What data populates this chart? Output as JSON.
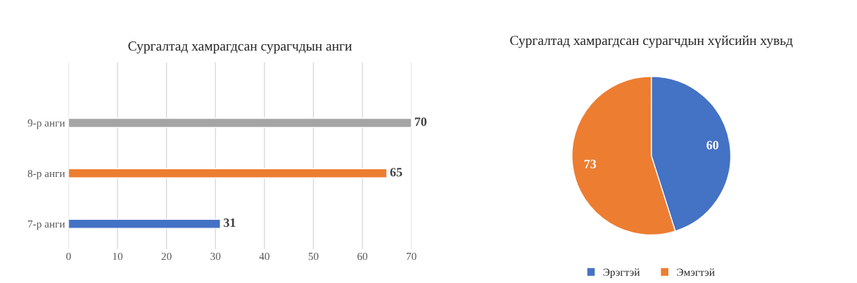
{
  "chart_data": [
    {
      "type": "bar",
      "title": "Сургалтад хамрагдсан сурагчдын анги",
      "orientation": "horizontal",
      "categories": [
        "9-р анги",
        "8-р анги",
        "7-р анги"
      ],
      "values": [
        70,
        65,
        31
      ],
      "colors": [
        "#a5a5a5",
        "#ed7d31",
        "#4472c4"
      ],
      "xlim": [
        0,
        70
      ],
      "xticks": [
        0,
        10,
        20,
        30,
        40,
        50,
        60,
        70
      ],
      "grid": "x",
      "data_labels": true
    },
    {
      "type": "pie",
      "title": "Сургалтад хамрагдсан сурагчдын хүйсийн хувьд",
      "categories": [
        "Эрэгтэй",
        "Эмэгтэй"
      ],
      "values": [
        60,
        73
      ],
      "colors": [
        "#4472c4",
        "#ed7d31"
      ],
      "data_labels": true,
      "legend": "bottom"
    }
  ]
}
